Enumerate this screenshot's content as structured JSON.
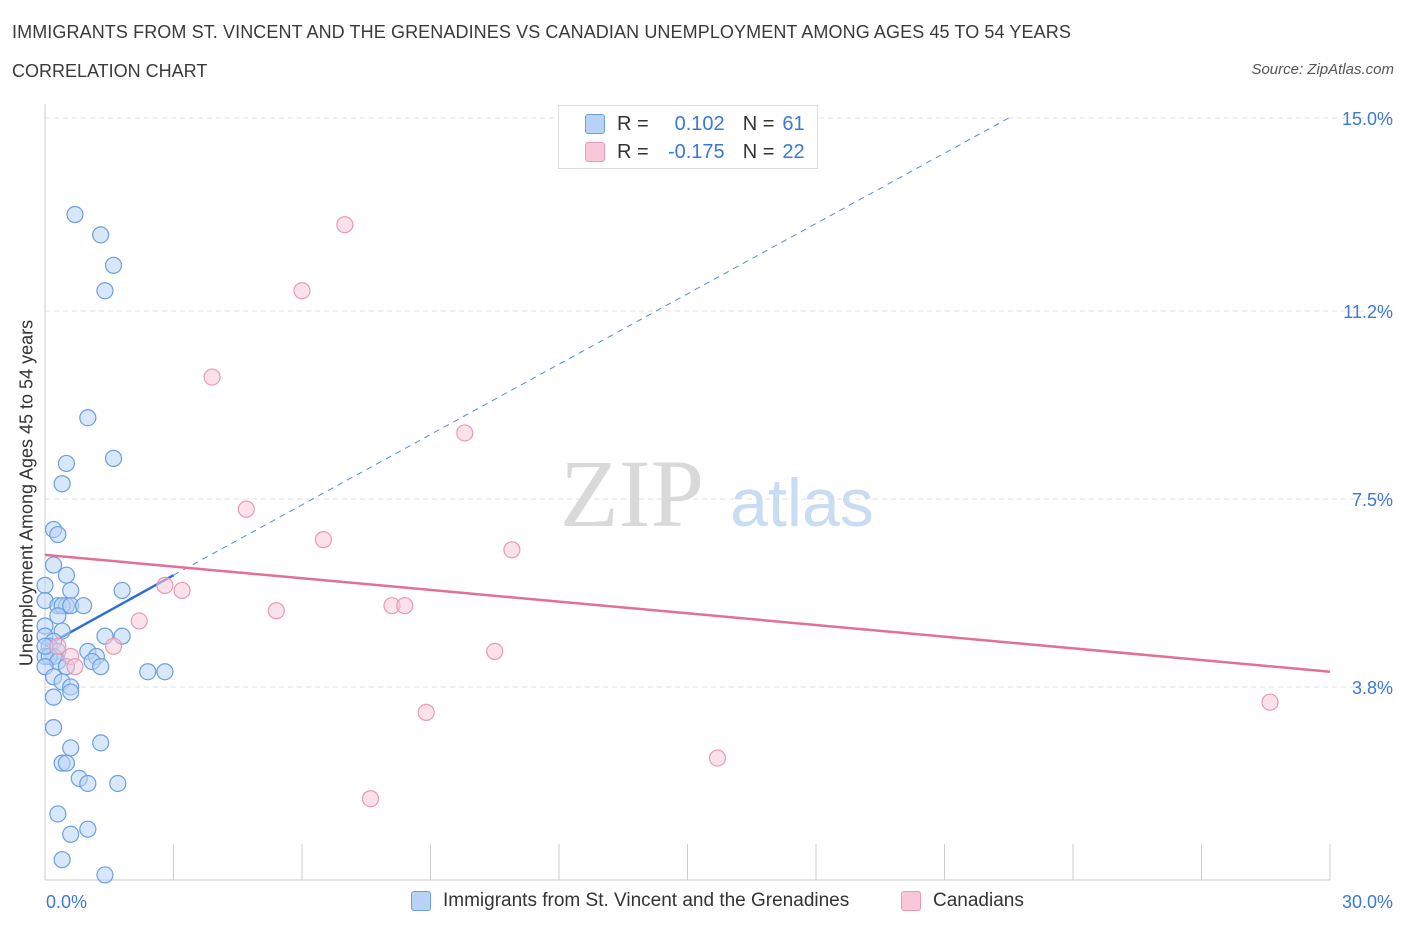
{
  "title": "IMMIGRANTS FROM ST. VINCENT AND THE GRENADINES VS CANADIAN UNEMPLOYMENT AMONG AGES 45 TO 54 YEARS",
  "subtitle": "CORRELATION CHART",
  "source": "Source: ZipAtlas.com",
  "watermark": {
    "zip": "ZIP",
    "atlas": "atlas"
  },
  "legend_top": {
    "series1": {
      "r_label": "R =",
      "r_value": "0.102",
      "n_label": "N =",
      "n_value": "61"
    },
    "series2": {
      "r_label": "R =",
      "r_value": "-0.175",
      "n_label": "N =",
      "n_value": "22"
    }
  },
  "colors": {
    "blue_fill": "#b8d3f5",
    "blue_stroke": "#6a9fe0",
    "blue_line": "#2f6fd4",
    "pink_fill": "#f8c8d8",
    "pink_stroke": "#e89ab3",
    "pink_line": "#e0709a",
    "tick_label": "#3b78d8",
    "grid": "#e2e2e2"
  },
  "chart_data": {
    "type": "scatter",
    "title": "IMMIGRANTS FROM ST. VINCENT AND THE GRENADINES VS CANADIAN UNEMPLOYMENT AMONG AGES 45 TO 54 YEARS",
    "subtitle": "CORRELATION CHART",
    "xlabel": "",
    "ylabel": "Unemployment Among Ages 45 to 54 years",
    "xlim": [
      0,
      30
    ],
    "ylim": [
      0,
      15
    ],
    "x_tick_labels": [
      "0.0%",
      "30.0%"
    ],
    "y_ticks": [
      3.8,
      7.5,
      11.2,
      15.0
    ],
    "y_tick_labels": [
      "3.8%",
      "7.5%",
      "11.2%",
      "15.0%"
    ],
    "grid": "horizontal dashed",
    "legend_position": "bottom",
    "series": [
      {
        "name": "Immigrants from St. Vincent and the Grenadines",
        "color": "#6a9fe0",
        "points": [
          [
            0.7,
            13.1
          ],
          [
            1.3,
            12.7
          ],
          [
            1.6,
            12.1
          ],
          [
            1.4,
            11.6
          ],
          [
            1.0,
            9.1
          ],
          [
            1.6,
            8.3
          ],
          [
            0.5,
            8.2
          ],
          [
            0.4,
            7.8
          ],
          [
            0.2,
            6.9
          ],
          [
            0.3,
            6.8
          ],
          [
            0.2,
            6.2
          ],
          [
            0.5,
            6.0
          ],
          [
            0.0,
            5.8
          ],
          [
            1.8,
            5.7
          ],
          [
            0.6,
            5.7
          ],
          [
            0.0,
            5.5
          ],
          [
            0.3,
            5.4
          ],
          [
            0.5,
            5.4
          ],
          [
            0.4,
            5.4
          ],
          [
            0.6,
            5.4
          ],
          [
            0.9,
            5.4
          ],
          [
            0.3,
            5.2
          ],
          [
            0.0,
            5.0
          ],
          [
            0.4,
            4.9
          ],
          [
            1.4,
            4.8
          ],
          [
            1.8,
            4.8
          ],
          [
            0.0,
            4.8
          ],
          [
            0.2,
            4.7
          ],
          [
            0.1,
            4.6
          ],
          [
            0.3,
            4.5
          ],
          [
            0.2,
            4.4
          ],
          [
            1.0,
            4.5
          ],
          [
            0.0,
            4.4
          ],
          [
            0.1,
            4.4
          ],
          [
            1.2,
            4.4
          ],
          [
            0.3,
            4.3
          ],
          [
            1.1,
            4.3
          ],
          [
            0.5,
            4.2
          ],
          [
            0.0,
            4.2
          ],
          [
            1.3,
            4.2
          ],
          [
            2.4,
            4.1
          ],
          [
            2.8,
            4.1
          ],
          [
            0.2,
            4.0
          ],
          [
            0.4,
            3.9
          ],
          [
            0.6,
            3.8
          ],
          [
            0.6,
            3.7
          ],
          [
            0.2,
            3.0
          ],
          [
            1.3,
            2.7
          ],
          [
            0.6,
            2.6
          ],
          [
            0.4,
            2.3
          ],
          [
            0.5,
            2.3
          ],
          [
            0.8,
            2.0
          ],
          [
            1.0,
            1.9
          ],
          [
            1.7,
            1.9
          ],
          [
            0.3,
            1.3
          ],
          [
            1.0,
            1.0
          ],
          [
            0.6,
            0.9
          ],
          [
            0.4,
            0.4
          ],
          [
            1.4,
            0.1
          ],
          [
            0.0,
            4.6
          ],
          [
            0.2,
            3.6
          ]
        ]
      },
      {
        "name": "Canadians",
        "color": "#e89ab3",
        "points": [
          [
            7.0,
            12.9
          ],
          [
            6.0,
            11.6
          ],
          [
            3.9,
            9.9
          ],
          [
            9.8,
            8.8
          ],
          [
            4.7,
            7.3
          ],
          [
            6.5,
            6.7
          ],
          [
            10.9,
            6.5
          ],
          [
            2.8,
            5.8
          ],
          [
            3.2,
            5.7
          ],
          [
            5.4,
            5.3
          ],
          [
            8.1,
            5.4
          ],
          [
            8.4,
            5.4
          ],
          [
            2.2,
            5.1
          ],
          [
            1.6,
            4.6
          ],
          [
            10.5,
            4.5
          ],
          [
            0.3,
            4.6
          ],
          [
            0.6,
            4.4
          ],
          [
            0.7,
            4.2
          ],
          [
            28.6,
            3.5
          ],
          [
            8.9,
            3.3
          ],
          [
            15.7,
            2.4
          ],
          [
            7.6,
            1.6
          ]
        ]
      }
    ],
    "trend_lines": [
      {
        "series": "Immigrants from St. Vincent and the Grenadines",
        "solid": [
          [
            0,
            4.6
          ],
          [
            3.0,
            6.0
          ]
        ],
        "dashed_to": [
          22.5,
          15.0
        ]
      },
      {
        "series": "Canadians",
        "solid": [
          [
            0,
            6.4
          ],
          [
            30,
            4.1
          ]
        ]
      }
    ]
  }
}
